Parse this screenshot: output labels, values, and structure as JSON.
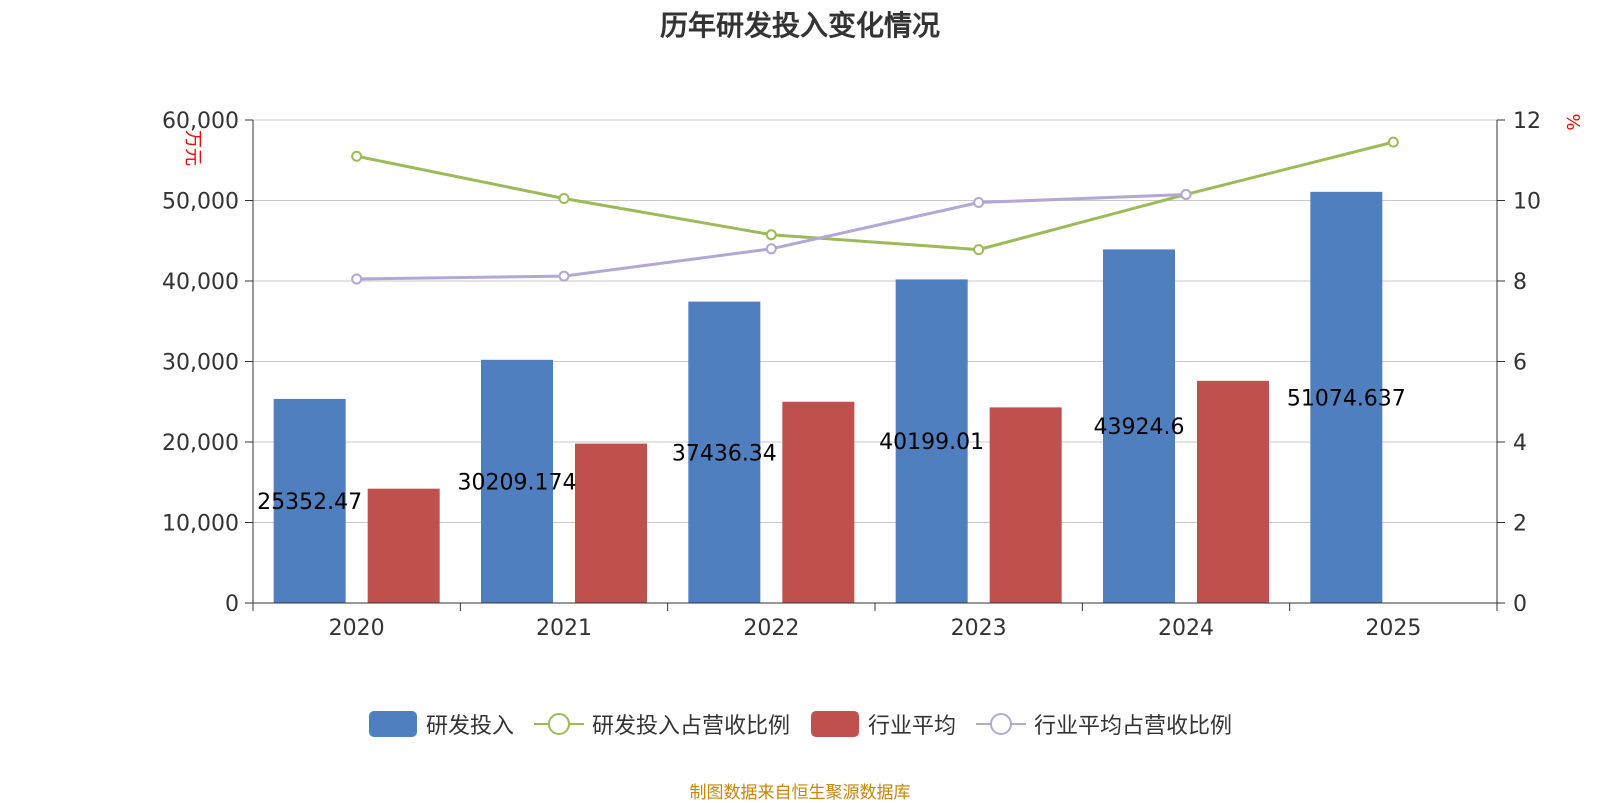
{
  "title": "历年研发投入变化情况",
  "source": "制图数据来自恒生聚源数据库",
  "colors": {
    "rd": "#4f7fbe",
    "rd_ratio": "#9bbb59",
    "industry": "#c0504d",
    "industry_ratio": "#b4a7d6",
    "unit": "#ff0000",
    "source": "#c8860a"
  },
  "chart_data": {
    "type": "bar",
    "title": "历年研发投入变化情况",
    "categories": [
      "2020",
      "2021",
      "2022",
      "2023",
      "2024",
      "2025"
    ],
    "y_left": {
      "unit": "万元",
      "ylim": [
        0,
        60000
      ],
      "ticks": [
        "0",
        "10,000",
        "20,000",
        "30,000",
        "40,000",
        "50,000",
        "60,000"
      ]
    },
    "y_right": {
      "unit": "%",
      "ylim": [
        0,
        12
      ],
      "ticks": [
        "0",
        "2",
        "4",
        "6",
        "8",
        "10",
        "12"
      ]
    },
    "series": [
      {
        "name": "研发投入",
        "type": "bar",
        "axis": "left",
        "values": [
          25352.47,
          30209.174,
          37436.34,
          40199.01,
          43924.6,
          51074.637
        ],
        "labels": [
          "25352.47",
          "30209.174",
          "37436.34",
          "40199.01",
          "43924.6",
          "51074.637"
        ]
      },
      {
        "name": "研发投入占营收比例",
        "type": "line",
        "axis": "right",
        "values": [
          11.1,
          10.05,
          9.15,
          8.78,
          10.15,
          11.45
        ]
      },
      {
        "name": "行业平均",
        "type": "bar",
        "axis": "left",
        "values": [
          14200,
          19800,
          25000,
          24300,
          27600,
          null
        ]
      },
      {
        "name": "行业平均占营收比例",
        "type": "line",
        "axis": "right",
        "values": [
          8.05,
          8.12,
          8.8,
          9.95,
          10.15,
          null
        ]
      }
    ],
    "grid": true,
    "legend": "bottom"
  }
}
